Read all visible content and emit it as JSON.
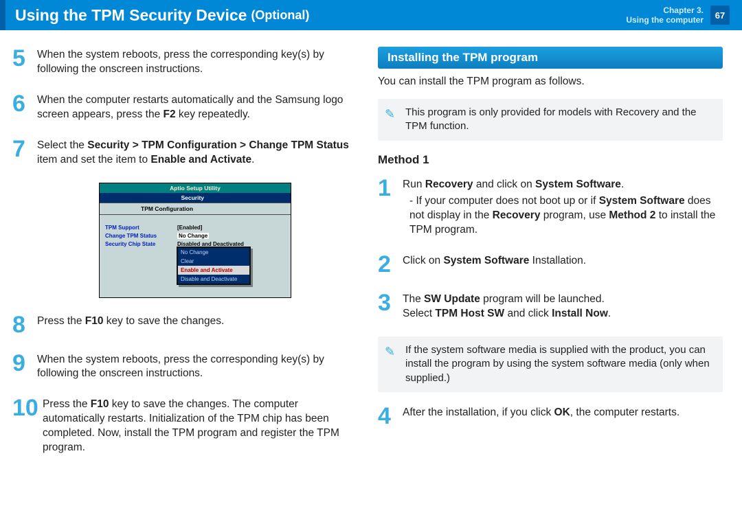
{
  "header": {
    "title": "Using the TPM Security Device",
    "subtitle": "(Optional)",
    "chapter_line1": "Chapter 3.",
    "chapter_line2": "Using the computer",
    "page_number": "67",
    "accent_color": "#0060a8",
    "bg_color": "#0087d6"
  },
  "left_steps": [
    {
      "n": "5",
      "html": "When the system reboots, press the corresponding key(s) by following the onscreen instructions."
    },
    {
      "n": "6",
      "html": "When the computer restarts automatically and the Samsung logo screen appears, press the <b>F2</b> key repeatedly."
    },
    {
      "n": "7",
      "html": "Select the <b>Security > TPM Configuration > Change TPM Status</b> item and set the item to <b>Enable and Activate</b>."
    },
    {
      "n": "8",
      "html": "Press the <b>F10</b> key to save the changes."
    },
    {
      "n": "9",
      "html": "When the system reboots, press the corresponding key(s) by following the onscreen instructions."
    },
    {
      "n": "10",
      "html": "Press the <b>F10</b> key to save the changes. The computer automatically restarts. Initialization of the TPM chip has been completed. Now, install the TPM program and register the TPM program."
    }
  ],
  "right": {
    "section_title": "Installing the TPM program",
    "intro": "You can install the TPM program as follows.",
    "note1": "This program is only provided for models with Recovery  and the TPM function.",
    "method_title": "Method 1",
    "steps": [
      {
        "n": "1",
        "html": "Run <b>Recovery</b> and click on <b>System Software</b>.<span class='sub-indent'>- If your computer does not boot up or if <b>System Software</b> does not display in the <b>Recovery</b> program, use <b>Method 2</b> to install the TPM program.</span>"
      },
      {
        "n": "2",
        "html": "Click on <b>System Software</b> Installation."
      },
      {
        "n": "3",
        "html": "The <b>SW Update</b> program will be launched.<br>Select <b>TPM Host SW</b> and click <b>Install Now</b>."
      }
    ],
    "note2": "If the system software media is supplied with the product, you can install the program by using the system software media (only when supplied.)",
    "step4": {
      "n": "4",
      "html": "After the installation, if you click <b>OK</b>, the computer restarts."
    }
  },
  "bios": {
    "title": "Aptio Setup Utility",
    "tab": "Security",
    "subtitle": "TPM Configuration",
    "rows": [
      {
        "k": "TPM Support",
        "v": "Enabled",
        "bracket": true
      },
      {
        "k": "Change TPM Status",
        "v": "No Change",
        "selected": true
      },
      {
        "k": "Security Chip State",
        "v": "Disabled and Deactivated"
      }
    ],
    "menu": [
      "No Change",
      "Clear",
      "Enable and Activate",
      "Disable and Deactivate"
    ],
    "menu_highlight_index": 2,
    "colors": {
      "top_bg": "#008080",
      "tab_bg": "#002d6b",
      "body_bg": "#c7d7d7",
      "link": "#001fbd"
    }
  }
}
